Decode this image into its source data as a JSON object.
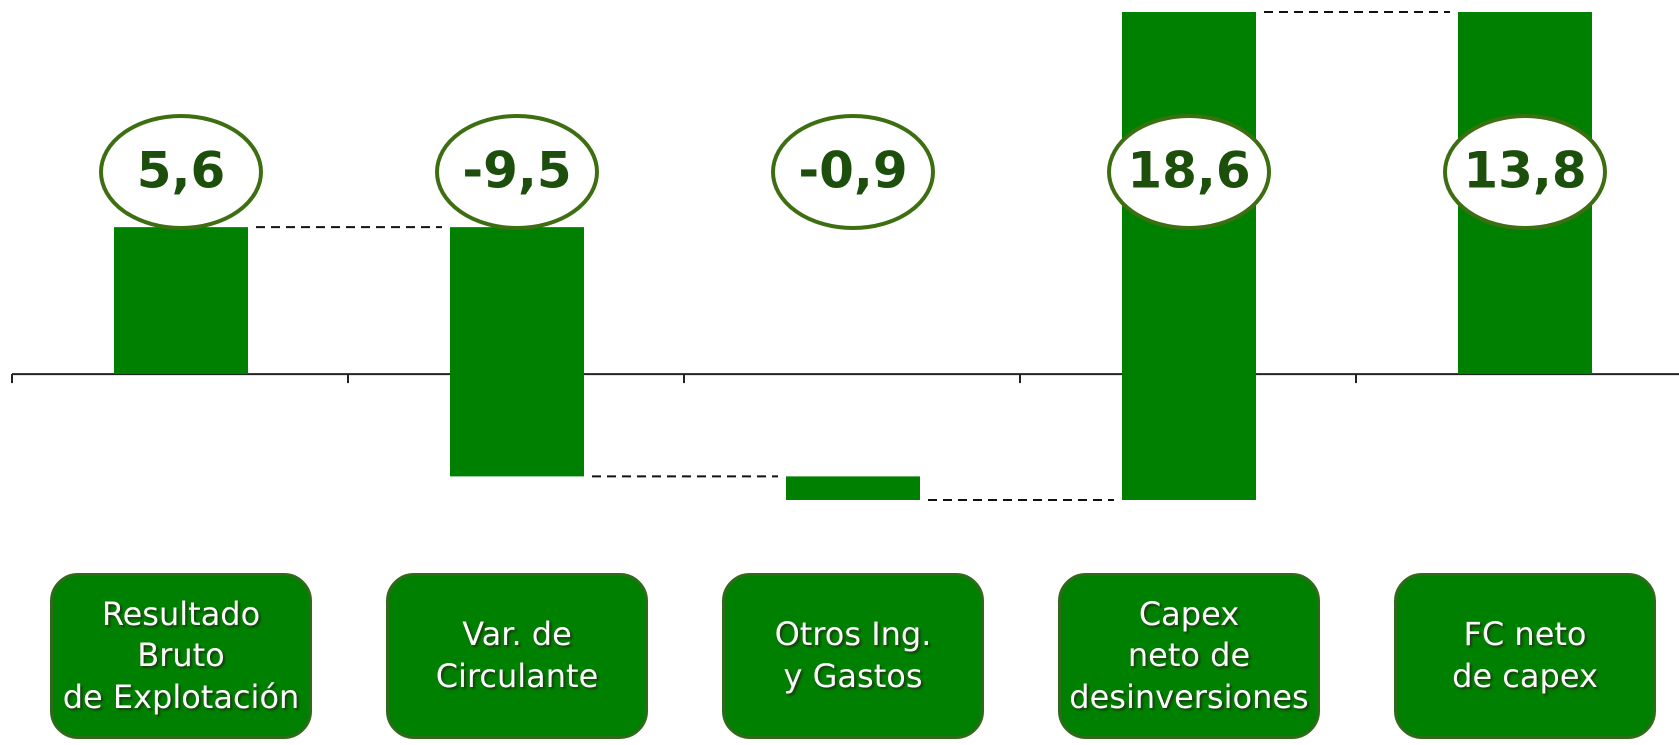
{
  "chart_data": {
    "type": "waterfall",
    "categories": [
      "Resultado Bruto\nde Explotación",
      "Var. de\nCirculante",
      "Otros Ing.\ny Gastos",
      "Capex\nneto de\ndesinversiones",
      "FC neto\nde capex"
    ],
    "values": [
      5.6,
      -9.5,
      -0.9,
      18.6,
      13.8
    ],
    "value_labels": [
      "5,6",
      "-9,5",
      "-0,9",
      "18,6",
      "13,8"
    ],
    "is_total": [
      false,
      false,
      false,
      false,
      true
    ],
    "color": "#008000"
  }
}
